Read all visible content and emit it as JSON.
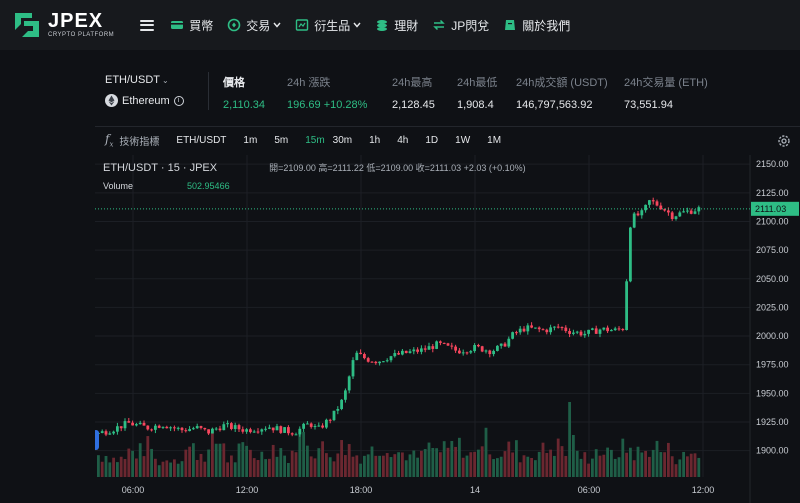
{
  "brand": {
    "name": "JPEX",
    "subtitle": "CRYPTO PLATFORM"
  },
  "nav": [
    {
      "label": "買幣",
      "icon": "card-icon",
      "dropdown": false
    },
    {
      "label": "交易",
      "icon": "exchange-icon",
      "dropdown": true
    },
    {
      "label": "衍生品",
      "icon": "chart-icon",
      "dropdown": true
    },
    {
      "label": "理財",
      "icon": "coins-icon",
      "dropdown": false
    },
    {
      "label": "JP閃兌",
      "icon": "swap-icon",
      "dropdown": false
    },
    {
      "label": "關於我們",
      "icon": "info-card-icon",
      "dropdown": false
    }
  ],
  "ticker": {
    "pair": "ETH/USDT",
    "coin_name": "Ethereum",
    "price_label": "價格",
    "price": "2,110.34",
    "change_label": "24h 漲跌",
    "change": "196.69 +10.28%",
    "high_label": "24h最高",
    "high": "2,128.45",
    "low_label": "24h最低",
    "low": "1,908.4",
    "turnover_label": "24h成交額 (USDT)",
    "turnover": "146,797,563.92",
    "volume_label": "24h交易量 (ETH)",
    "volume": "73,551.94"
  },
  "toolbar": {
    "indicators_label": "技術指標",
    "symbol": "ETH/USDT",
    "intervals": [
      "1m",
      "5m",
      "15m",
      "30m",
      "1h",
      "4h",
      "1D",
      "1W",
      "1M"
    ],
    "active_interval": "15m"
  },
  "legend": {
    "title": "ETH/USDT · 15 · JPEX",
    "ohlc": "開=2109.00 高=2111.22 低=2109.00 收=2111.03 +2.03 (+0.10%)",
    "volume_label": "Volume",
    "volume_value": "502.95466"
  },
  "colors": {
    "up": "#2ebd85",
    "down": "#f6465d",
    "accent": "#2ebd85"
  },
  "chart_data": {
    "type": "candlestick",
    "title": "ETH/USDT · 15 · JPEX",
    "interval": "15m",
    "y_ticks": [
      1900,
      1925,
      1950,
      1975,
      2000,
      2025,
      2050,
      2075,
      2100,
      2125,
      2150
    ],
    "y_tick_labels": [
      "1900.00",
      "1925.00",
      "1950.00",
      "1975.00",
      "2000.00",
      "2025.00",
      "2050.00",
      "2075.00",
      "2100.00",
      "2125.00",
      "2150.00"
    ],
    "ylim": [
      1877,
      2158
    ],
    "x_tick_labels": [
      "06:00",
      "12:00",
      "18:00",
      "14",
      "06:00",
      "12:00"
    ],
    "last_price": "2111.03",
    "grid": true,
    "close_trend": [
      [
        0,
        1915
      ],
      [
        8,
        1919
      ],
      [
        16,
        1924
      ],
      [
        26,
        1920
      ],
      [
        34,
        1923
      ],
      [
        44,
        1918
      ],
      [
        52,
        1920
      ],
      [
        58,
        1916
      ],
      [
        66,
        1922
      ],
      [
        78,
        1918
      ],
      [
        90,
        1921
      ],
      [
        100,
        1917
      ],
      [
        104,
        1916
      ],
      [
        112,
        1924
      ],
      [
        116,
        1918
      ],
      [
        124,
        1930
      ],
      [
        130,
        1946
      ],
      [
        136,
        1985
      ],
      [
        142,
        1980
      ],
      [
        148,
        1978
      ],
      [
        154,
        1982
      ],
      [
        162,
        1985
      ],
      [
        172,
        1988
      ],
      [
        180,
        1993
      ],
      [
        190,
        1987
      ],
      [
        200,
        1990
      ],
      [
        208,
        1987
      ],
      [
        214,
        1991
      ],
      [
        220,
        2002
      ],
      [
        226,
        2007
      ],
      [
        236,
        2005
      ],
      [
        244,
        2008
      ],
      [
        250,
        2004
      ],
      [
        258,
        2002
      ],
      [
        266,
        2006
      ],
      [
        274,
        2005
      ],
      [
        278,
        2007
      ],
      [
        282,
        2103
      ],
      [
        288,
        2107
      ],
      [
        292,
        2118
      ],
      [
        298,
        2113
      ],
      [
        304,
        2105
      ],
      [
        310,
        2108
      ],
      [
        318,
        2111
      ]
    ],
    "volume_trend": [
      22,
      18,
      25,
      30,
      16,
      20,
      28,
      24,
      35,
      18,
      26,
      22,
      30,
      20,
      40,
      28,
      24,
      30,
      22,
      26,
      32,
      24,
      20,
      28,
      26,
      30,
      22,
      36,
      24,
      28,
      22,
      26,
      30,
      24,
      20,
      26,
      22,
      28,
      24,
      30,
      26,
      20,
      24
    ]
  }
}
